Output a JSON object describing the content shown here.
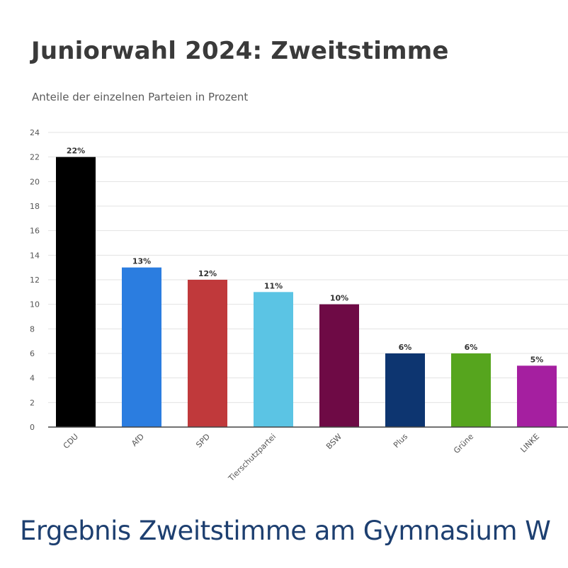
{
  "chart_data": {
    "type": "bar",
    "title": "Juniorwahl 2024: Zweitstimme",
    "subtitle": "Anteile der einzelnen Parteien in Prozent",
    "categories": [
      "CDU",
      "AfD",
      "SPD",
      "Tierschutzpartei",
      "BSW",
      "Plus",
      "Grüne",
      "LINKE"
    ],
    "values": [
      22,
      13,
      12,
      11,
      10,
      6,
      6,
      5
    ],
    "data_labels": [
      "22%",
      "13%",
      "12%",
      "11%",
      "10%",
      "6%",
      "6%",
      "5%"
    ],
    "colors": [
      "#000000",
      "#2b7de0",
      "#c0393b",
      "#5bc4e4",
      "#6e0a45",
      "#0d3570",
      "#56a51e",
      "#a51fa0"
    ],
    "ylim": [
      0,
      24
    ],
    "yticks": [
      0,
      2,
      4,
      6,
      8,
      10,
      12,
      14,
      16,
      18,
      20,
      22,
      24
    ],
    "grid": true,
    "xlabel": "",
    "ylabel": ""
  },
  "caption": "Ergebnis Zweitstimme am Gymnasium W"
}
